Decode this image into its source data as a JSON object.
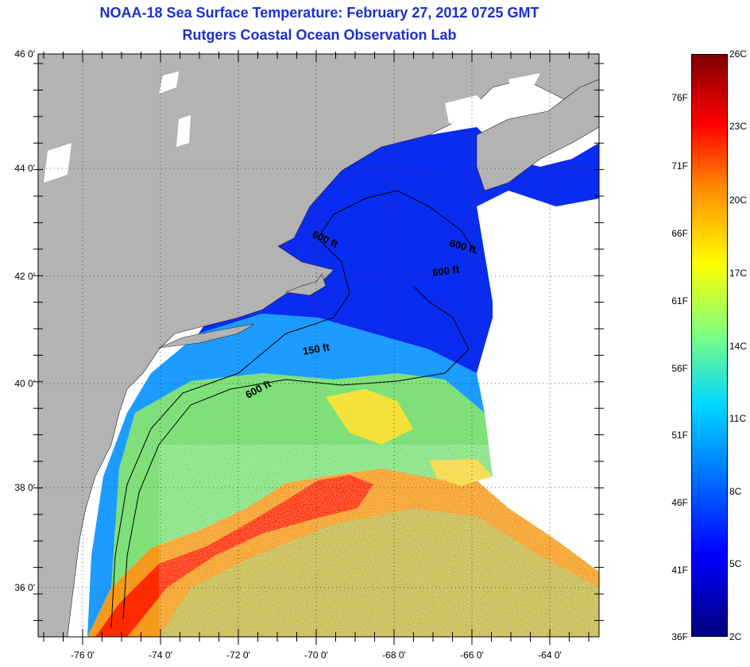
{
  "title": "NOAA-18 Sea Surface Temperature:  February 27, 2012 0725 GMT",
  "subtitle": "Rutgers Coastal Ocean Observation Lab",
  "map": {
    "lon_range": [
      -77,
      -63
    ],
    "lat_range": [
      35,
      46
    ],
    "x_ticks": [
      "-76 0'",
      "-74 0'",
      "-72 0'",
      "-70 0'",
      "-68 0'",
      "-66 0'",
      "-64 0'"
    ],
    "y_ticks": [
      "46 0'",
      "44 0'",
      "42 0'",
      "40 0'",
      "38 0'",
      "36 0'"
    ],
    "contours": [
      {
        "label": "600 ft"
      },
      {
        "label": "600 ft"
      },
      {
        "label": "600 ft"
      },
      {
        "label": "150 ft"
      },
      {
        "label": "600 ft"
      }
    ],
    "colors": {
      "land": "#b3b3b3",
      "cloud": "#ffffff",
      "cold": "#0020e0",
      "warm": "#ff2a00"
    }
  },
  "colorbar": {
    "celsius": [
      "26C",
      "23C",
      "20C",
      "17C",
      "14C",
      "11C",
      "8C",
      "5C",
      "2C"
    ],
    "fahrenheit": [
      "76F",
      "71F",
      "66F",
      "61F",
      "56F",
      "51F",
      "46F",
      "41F",
      "36F"
    ]
  }
}
